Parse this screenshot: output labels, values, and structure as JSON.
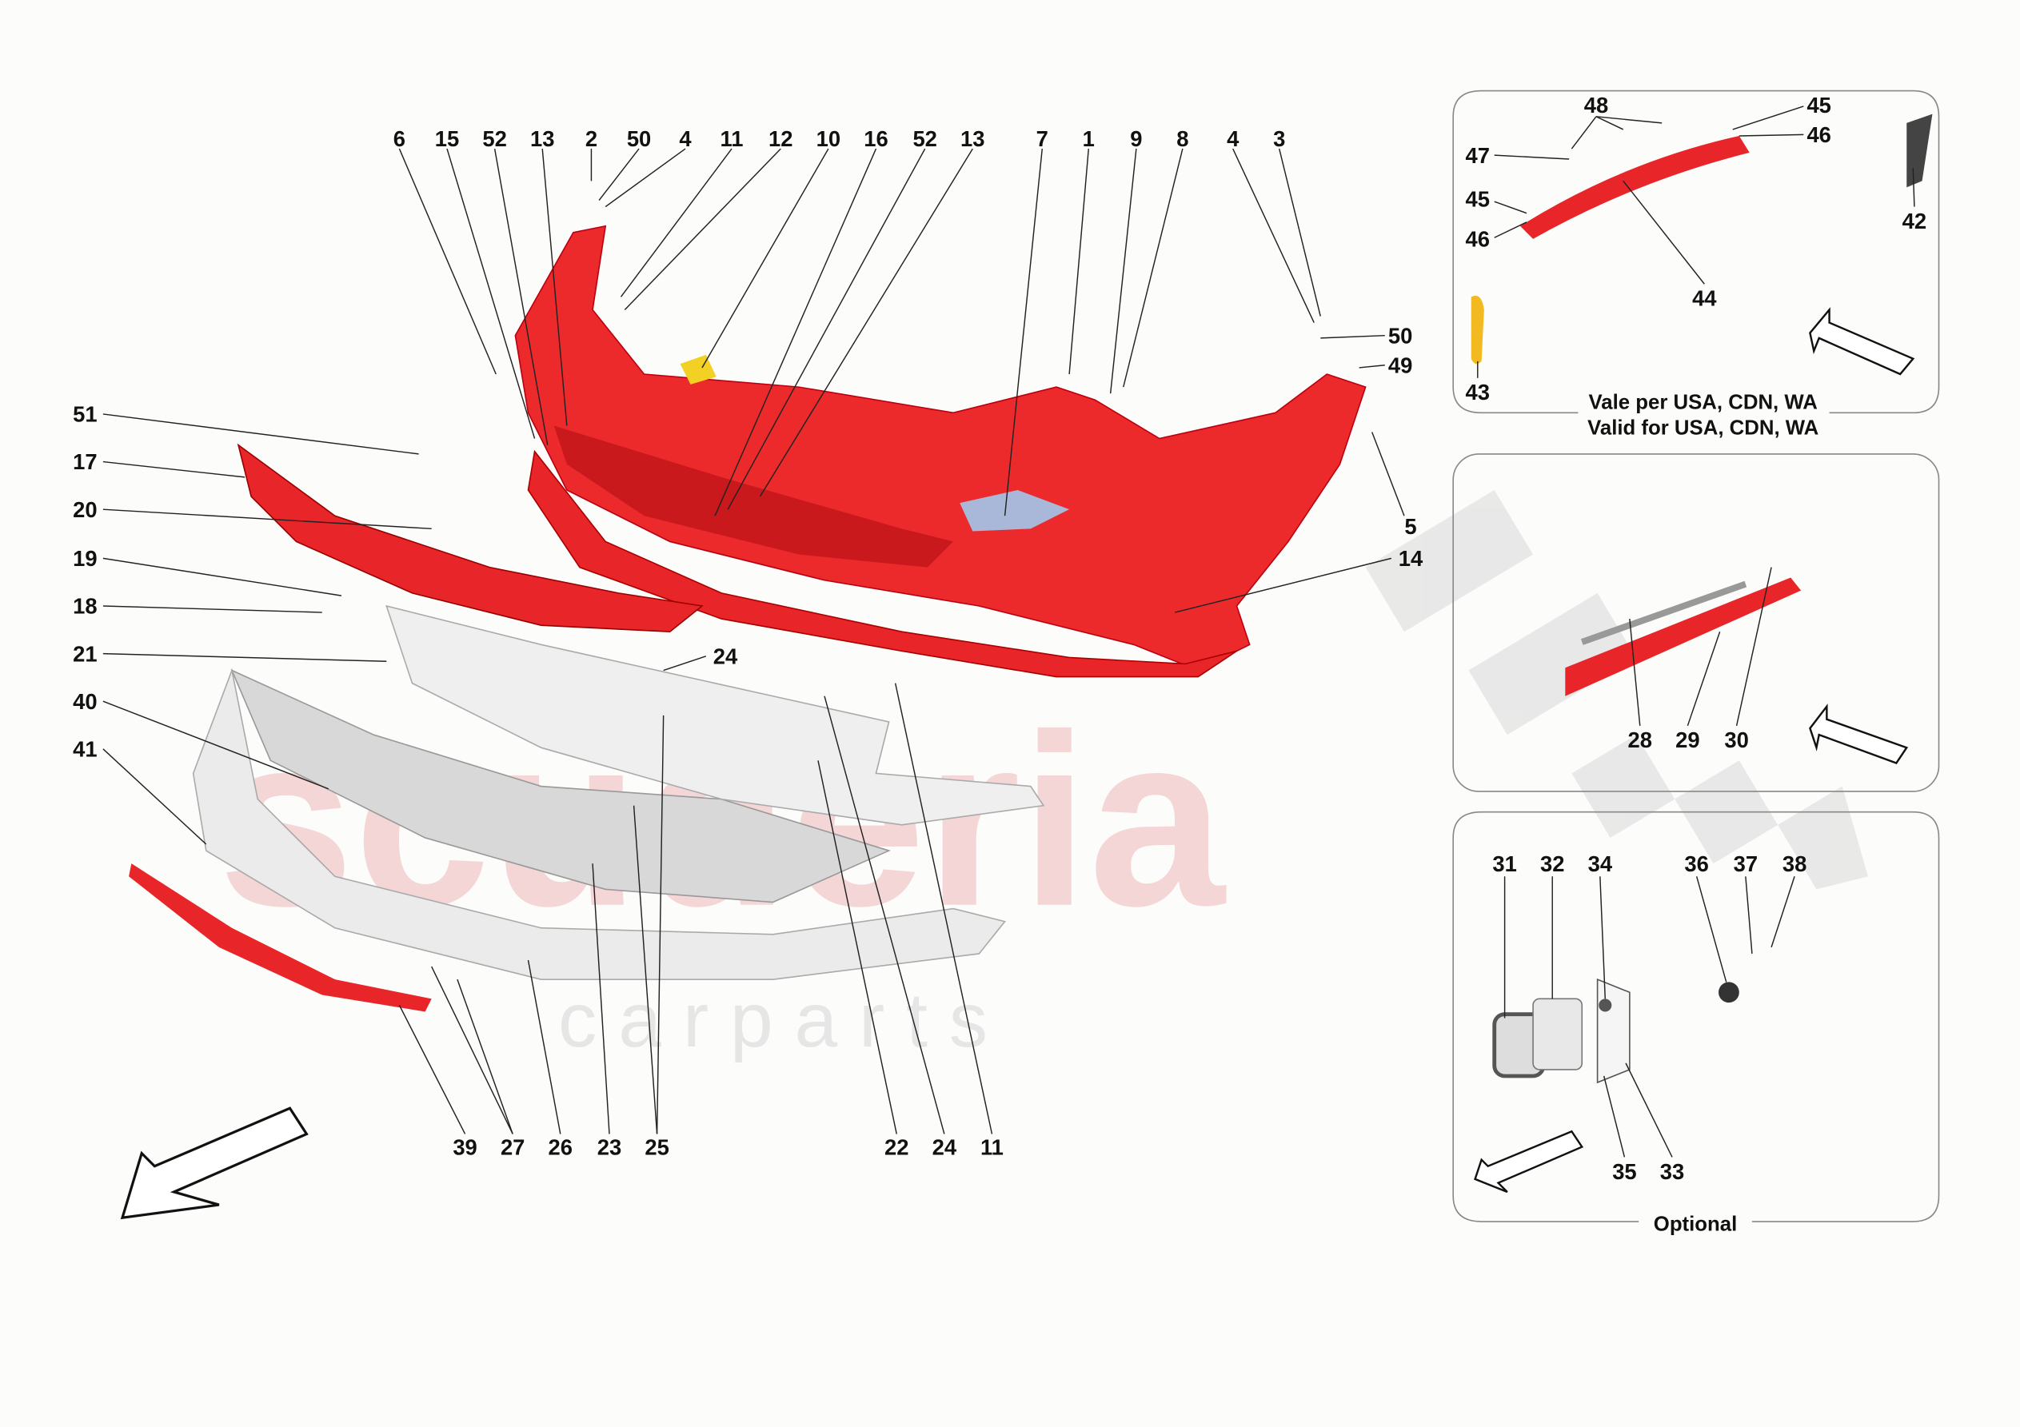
{
  "watermark": {
    "brand": "scuderia",
    "sub": "c a r p a r t s"
  },
  "colors": {
    "part_highlight": "#e8262a",
    "decal": "#f2d024",
    "panel_border": "#888888"
  },
  "main_labels": {
    "top": [
      "6",
      "15",
      "52",
      "13",
      "2",
      "50",
      "4",
      "11",
      "12",
      "10",
      "16",
      "52",
      "13",
      "7",
      "1",
      "9",
      "8",
      "4",
      "3"
    ],
    "right": [
      "50",
      "49",
      "5",
      "14"
    ],
    "left": [
      "51",
      "17",
      "20",
      "19",
      "18",
      "21",
      "40",
      "41"
    ],
    "mid": [
      "24"
    ],
    "bottom": [
      "39",
      "27",
      "26",
      "23",
      "25",
      "22",
      "24",
      "11"
    ]
  },
  "panel_usa": {
    "labels": [
      "48",
      "45",
      "47",
      "46",
      "45",
      "46",
      "42",
      "44",
      "43"
    ],
    "caption_it": "Vale per USA, CDN, WA",
    "caption_en": "Valid for USA, CDN, WA"
  },
  "panel_strip": {
    "labels": [
      "28",
      "29",
      "30"
    ]
  },
  "panel_optional": {
    "labels": [
      "31",
      "32",
      "34",
      "36",
      "37",
      "38",
      "35",
      "33"
    ],
    "caption": "Optional"
  }
}
